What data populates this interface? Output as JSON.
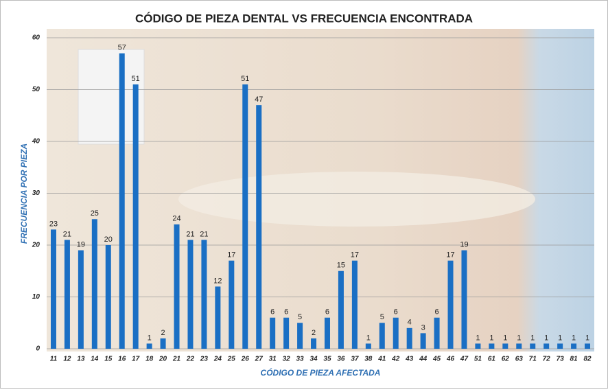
{
  "chart_data": {
    "type": "bar",
    "title": "CÓDIGO DE PIEZA DENTAL VS FRECUENCIA ENCONTRADA",
    "xlabel": "CÓDIGO DE PIEZA AFECTADA",
    "ylabel": "FRECUENCIA POR PIEZA",
    "categories": [
      "11",
      "12",
      "13",
      "14",
      "15",
      "16",
      "17",
      "18",
      "20",
      "21",
      "22",
      "23",
      "24",
      "25",
      "26",
      "27",
      "31",
      "32",
      "33",
      "34",
      "35",
      "36",
      "37",
      "38",
      "41",
      "42",
      "43",
      "44",
      "45",
      "46",
      "47",
      "51",
      "61",
      "62",
      "63",
      "71",
      "72",
      "73",
      "81",
      "82"
    ],
    "values": [
      23,
      21,
      19,
      25,
      20,
      57,
      51,
      1,
      2,
      24,
      21,
      21,
      12,
      17,
      51,
      47,
      6,
      6,
      5,
      2,
      6,
      15,
      17,
      1,
      5,
      6,
      4,
      3,
      6,
      17,
      19,
      1,
      1,
      1,
      1,
      1,
      1,
      1,
      1,
      1
    ],
    "color": "#1a6fc4",
    "ylim": [
      0,
      60
    ],
    "yticks": [
      0,
      10,
      20,
      30,
      40,
      50,
      60
    ],
    "grid": true
  }
}
